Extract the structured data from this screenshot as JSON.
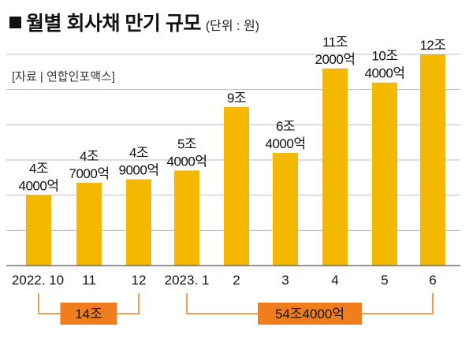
{
  "header": {
    "title": "월별 회사채 만기 규모",
    "unit": "(단위 : 원)",
    "source": "[자료 | 연합인포맥스]"
  },
  "colors": {
    "bar": "#f5b800",
    "bracket": "#f07e1c",
    "grid": "#bdbdbd",
    "axis": "#555555"
  },
  "chart_data": {
    "type": "bar",
    "categories": [
      "2022. 10",
      "11",
      "12",
      "2023. 1",
      "2",
      "3",
      "4",
      "5",
      "6"
    ],
    "values": [
      4,
      4.7,
      4.9,
      5.4,
      9,
      6.4,
      11.2,
      10.4,
      12
    ],
    "value_labels": [
      [
        "4조",
        "4000억"
      ],
      [
        "4조",
        "7000억"
      ],
      [
        "4조",
        "9000억"
      ],
      [
        "5조",
        "4000억"
      ],
      [
        "9조"
      ],
      [
        "6조",
        "4000억"
      ],
      [
        "11조",
        "2000억"
      ],
      [
        "10조",
        "4000억"
      ],
      [
        "12조"
      ]
    ],
    "ylim": [
      0,
      12
    ],
    "grid": true,
    "annotations": [
      {
        "from": 0,
        "to": 2,
        "label": "14조"
      },
      {
        "from": 3,
        "to": 8,
        "label": "54조4000억"
      }
    ]
  }
}
